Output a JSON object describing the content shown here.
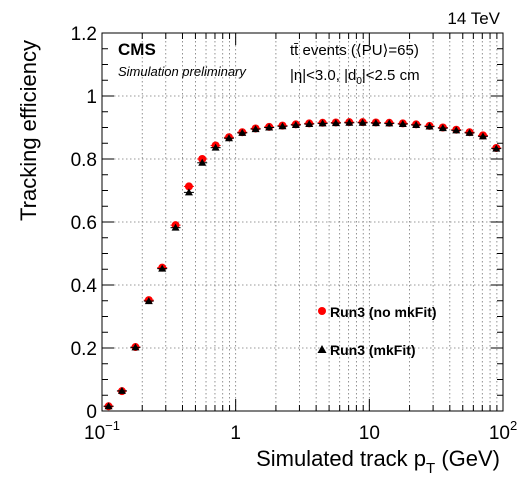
{
  "header": {
    "energy_label": "14 TeV",
    "experiment": "CMS",
    "status": "Simulation preliminary",
    "sample_line_1": "tt̄ events (⟨PU⟩=65)",
    "sample_line_2": "|η|<3.0, |d",
    "sample_line_2_sub": "0",
    "sample_line_2_end": "|<2.5 cm"
  },
  "chart_data": {
    "type": "scatter",
    "xscale": "log",
    "xlim": [
      0.1,
      100
    ],
    "ylim": [
      0,
      1.2
    ],
    "grid": true,
    "legend_position": "center-right",
    "xlabel": "Simulated track p",
    "xlabel_sub": "T",
    "xlabel_unit": " (GeV)",
    "ylabel": "Tracking efficiency",
    "y_ticks": [
      "0",
      "0.2",
      "0.4",
      "0.6",
      "0.8",
      "1",
      "1.2"
    ],
    "x_ticks": [
      {
        "base": "10",
        "exp": "−1"
      },
      {
        "base": "1",
        "exp": ""
      },
      {
        "base": "10",
        "exp": ""
      },
      {
        "base": "10",
        "exp": "2"
      }
    ],
    "x": [
      0.112,
      0.141,
      0.178,
      0.224,
      0.282,
      0.355,
      0.447,
      0.562,
      0.708,
      0.891,
      1.12,
      1.41,
      1.78,
      2.24,
      2.82,
      3.55,
      4.47,
      5.62,
      7.08,
      8.91,
      11.2,
      14.1,
      17.8,
      22.4,
      28.2,
      35.5,
      44.7,
      56.2,
      70.8,
      89.1
    ],
    "series": [
      {
        "name": "Run3 (no mkFit)",
        "color": "#ff0000",
        "marker": "circle",
        "values": [
          0.015,
          0.063,
          0.203,
          0.352,
          0.455,
          0.59,
          0.713,
          0.8,
          0.843,
          0.869,
          0.885,
          0.897,
          0.902,
          0.906,
          0.91,
          0.913,
          0.915,
          0.916,
          0.917,
          0.917,
          0.916,
          0.915,
          0.913,
          0.91,
          0.905,
          0.9,
          0.893,
          0.885,
          0.875,
          0.835
        ]
      },
      {
        "name": "Run3 (mkFit)",
        "color": "#000000",
        "marker": "triangle",
        "values": [
          0.015,
          0.064,
          0.202,
          0.349,
          0.452,
          0.582,
          0.694,
          0.788,
          0.836,
          0.866,
          0.883,
          0.895,
          0.9,
          0.904,
          0.908,
          0.911,
          0.913,
          0.914,
          0.915,
          0.915,
          0.914,
          0.913,
          0.911,
          0.908,
          0.903,
          0.898,
          0.891,
          0.883,
          0.872,
          0.833
        ]
      }
    ]
  }
}
